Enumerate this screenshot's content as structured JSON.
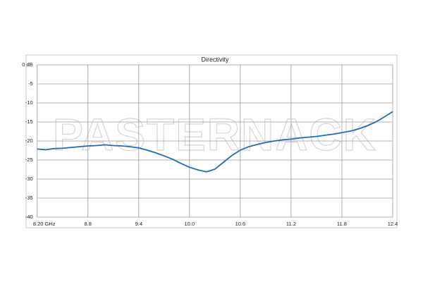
{
  "chart_data": {
    "type": "line",
    "title": "Directivity",
    "watermark": "PASTERNACK",
    "x": [
      8.2,
      8.3,
      8.4,
      8.5,
      8.6,
      8.7,
      8.8,
      8.9,
      9.0,
      9.1,
      9.2,
      9.3,
      9.4,
      9.5,
      9.6,
      9.7,
      9.8,
      9.9,
      10.0,
      10.1,
      10.2,
      10.3,
      10.4,
      10.5,
      10.6,
      10.7,
      10.8,
      10.9,
      11.0,
      11.1,
      11.2,
      11.3,
      11.4,
      11.5,
      11.6,
      11.7,
      11.8,
      11.9,
      12.0,
      12.1,
      12.2,
      12.3,
      12.4
    ],
    "series": [
      {
        "name": "Directivity",
        "color": "#1f6db5",
        "values": [
          -22.1,
          -22.3,
          -22.0,
          -21.9,
          -21.7,
          -21.5,
          -21.3,
          -21.2,
          -21.0,
          -21.2,
          -21.3,
          -21.5,
          -21.8,
          -22.4,
          -23.1,
          -23.9,
          -24.8,
          -25.9,
          -26.9,
          -27.6,
          -28.1,
          -27.4,
          -25.6,
          -23.8,
          -22.4,
          -21.5,
          -20.9,
          -20.4,
          -20.0,
          -19.7,
          -19.5,
          -19.2,
          -19.0,
          -18.8,
          -18.5,
          -18.2,
          -17.8,
          -17.4,
          -16.8,
          -16.0,
          -15.0,
          -13.7,
          -12.3
        ]
      }
    ],
    "xlim": [
      8.2,
      12.4
    ],
    "xticks": [
      {
        "value": 8.2,
        "label": "8.20 GHz"
      },
      8.8,
      9.4,
      {
        "value": 10.0,
        "label": "10.0"
      },
      10.6,
      11.2,
      11.8,
      12.4
    ],
    "ylim": [
      -40,
      0
    ],
    "yticks": [
      {
        "value": 0,
        "label": "0 dB"
      },
      -5,
      -10,
      -15,
      -20,
      -25,
      -30,
      -35,
      -40
    ],
    "grid": true
  }
}
